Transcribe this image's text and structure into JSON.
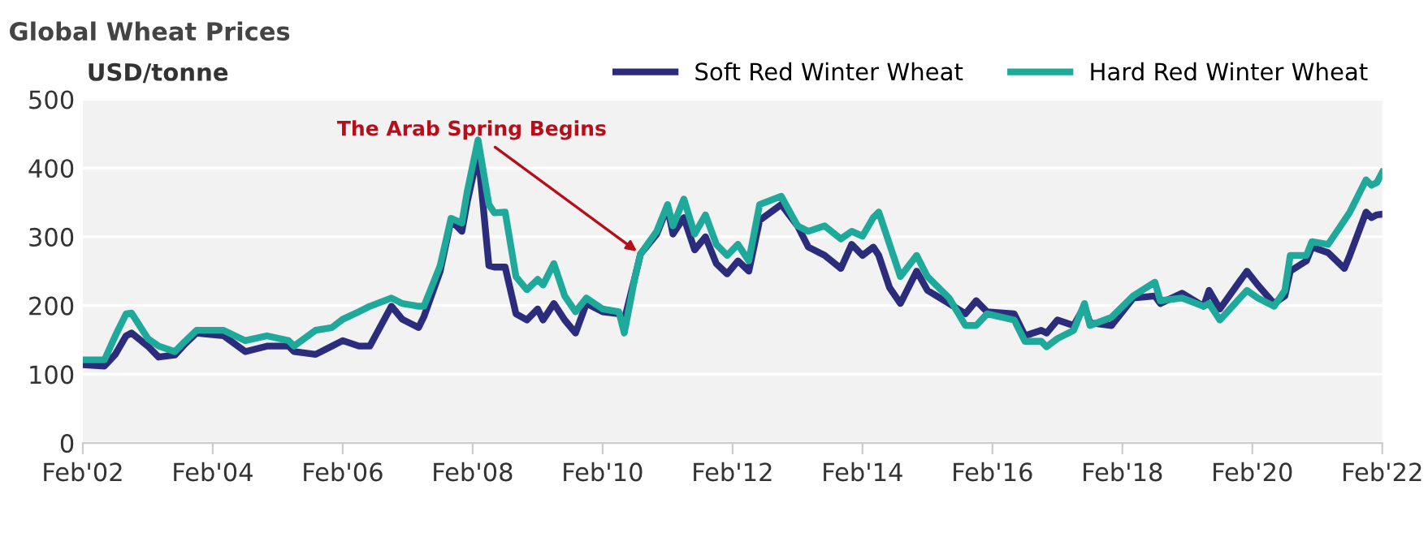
{
  "chart_data": {
    "type": "line",
    "title": "Global Wheat Prices",
    "ylabel": "USD/tonne",
    "x": [
      "2002-02",
      "2002-06",
      "2002-08",
      "2002-10",
      "2002-11",
      "2003-02",
      "2003-04",
      "2003-07",
      "2003-09",
      "2003-11",
      "2004-04",
      "2004-08",
      "2004-12",
      "2005-04",
      "2005-05",
      "2005-09",
      "2005-12",
      "2006-02",
      "2006-05",
      "2006-07",
      "2006-11",
      "2007-01",
      "2007-04",
      "2007-05",
      "2007-08",
      "2007-10",
      "2007-12",
      "2008-01",
      "2008-03",
      "2008-05",
      "2008-06",
      "2008-08",
      "2008-10",
      "2008-12",
      "2009-02",
      "2009-03",
      "2009-05",
      "2009-07",
      "2009-09",
      "2009-11",
      "2010-02",
      "2010-05",
      "2010-06",
      "2010-08",
      "2010-09",
      "2010-12",
      "2011-02",
      "2011-03",
      "2011-05",
      "2011-07",
      "2011-09",
      "2011-11",
      "2012-01",
      "2012-03",
      "2012-05",
      "2012-07",
      "2012-11",
      "2013-02",
      "2013-04",
      "2013-07",
      "2013-10",
      "2013-12",
      "2014-02",
      "2014-04",
      "2014-05",
      "2014-07",
      "2014-09",
      "2014-12",
      "2015-02",
      "2015-06",
      "2015-09",
      "2015-11",
      "2016-01",
      "2016-06",
      "2016-08",
      "2016-11",
      "2016-12",
      "2017-02",
      "2017-05",
      "2017-07",
      "2017-08",
      "2017-12",
      "2018-04",
      "2018-08",
      "2018-09",
      "2019-01",
      "2019-05",
      "2019-06",
      "2019-08",
      "2020-01",
      "2020-03",
      "2020-06",
      "2020-08",
      "2020-09",
      "2020-12",
      "2021-01",
      "2021-04",
      "2021-07",
      "2021-08",
      "2021-11",
      "2021-12",
      "2022-01",
      "2022-02"
    ],
    "series": [
      {
        "name": "Soft Red Winter Wheat",
        "color": "#2b2d7c",
        "values": [
          114,
          112,
          129,
          156,
          160,
          141,
          125,
          128,
          145,
          160,
          156,
          133,
          141,
          141,
          133,
          129,
          141,
          149,
          141,
          141,
          199,
          180,
          168,
          184,
          250,
          324,
          308,
          351,
          422,
          258,
          256,
          256,
          188,
          179,
          195,
          179,
          203,
          179,
          160,
          203,
          191,
          188,
          179,
          242,
          275,
          304,
          343,
          304,
          328,
          281,
          300,
          261,
          246,
          265,
          250,
          324,
          347,
          316,
          285,
          273,
          254,
          289,
          273,
          285,
          273,
          226,
          203,
          250,
          222,
          203,
          188,
          207,
          191,
          188,
          156,
          164,
          160,
          179,
          171,
          199,
          175,
          171,
          211,
          214,
          203,
          218,
          199,
          222,
          195,
          250,
          230,
          203,
          214,
          250,
          265,
          285,
          277,
          254,
          273,
          336,
          328,
          332,
          333
        ]
      },
      {
        "name": "Hard Red Winter Wheat",
        "color": "#1fa99a",
        "values": [
          121,
          121,
          156,
          188,
          189,
          152,
          141,
          133,
          149,
          164,
          164,
          149,
          156,
          149,
          141,
          164,
          168,
          180,
          191,
          199,
          211,
          203,
          199,
          199,
          258,
          327,
          320,
          366,
          441,
          347,
          335,
          336,
          242,
          223,
          238,
          230,
          261,
          214,
          191,
          211,
          195,
          191,
          160,
          242,
          275,
          308,
          347,
          316,
          355,
          304,
          332,
          289,
          273,
          289,
          265,
          347,
          359,
          316,
          308,
          316,
          297,
          308,
          301,
          328,
          336,
          289,
          242,
          273,
          242,
          211,
          171,
          171,
          188,
          179,
          148,
          148,
          140,
          152,
          164,
          203,
          171,
          183,
          214,
          234,
          207,
          211,
          199,
          203,
          179,
          222,
          211,
          199,
          222,
          273,
          273,
          293,
          289,
          324,
          336,
          383,
          375,
          379,
          394
        ]
      }
    ],
    "xlim": [
      "2002-02",
      "2022-02"
    ],
    "xticks": [
      {
        "value": "2002-02",
        "label": "Feb'02"
      },
      {
        "value": "2004-02",
        "label": "Feb'04"
      },
      {
        "value": "2006-02",
        "label": "Feb'06"
      },
      {
        "value": "2008-02",
        "label": "Feb'08"
      },
      {
        "value": "2010-02",
        "label": "Feb'10"
      },
      {
        "value": "2012-02",
        "label": "Feb'12"
      },
      {
        "value": "2014-02",
        "label": "Feb'14"
      },
      {
        "value": "2016-02",
        "label": "Feb'16"
      },
      {
        "value": "2018-02",
        "label": "Feb'18"
      },
      {
        "value": "2020-02",
        "label": "Feb'20"
      },
      {
        "value": "2022-02",
        "label": "Feb'22"
      }
    ],
    "ylim": [
      0,
      500
    ],
    "yticks": [
      0,
      100,
      200,
      300,
      400,
      500
    ],
    "grid": "y",
    "legend": "top right",
    "marker": "none",
    "line_style": "solid",
    "annotations": [
      {
        "text": "The Arab Spring Begins",
        "x": "2010-09",
        "y": 275
      }
    ]
  }
}
